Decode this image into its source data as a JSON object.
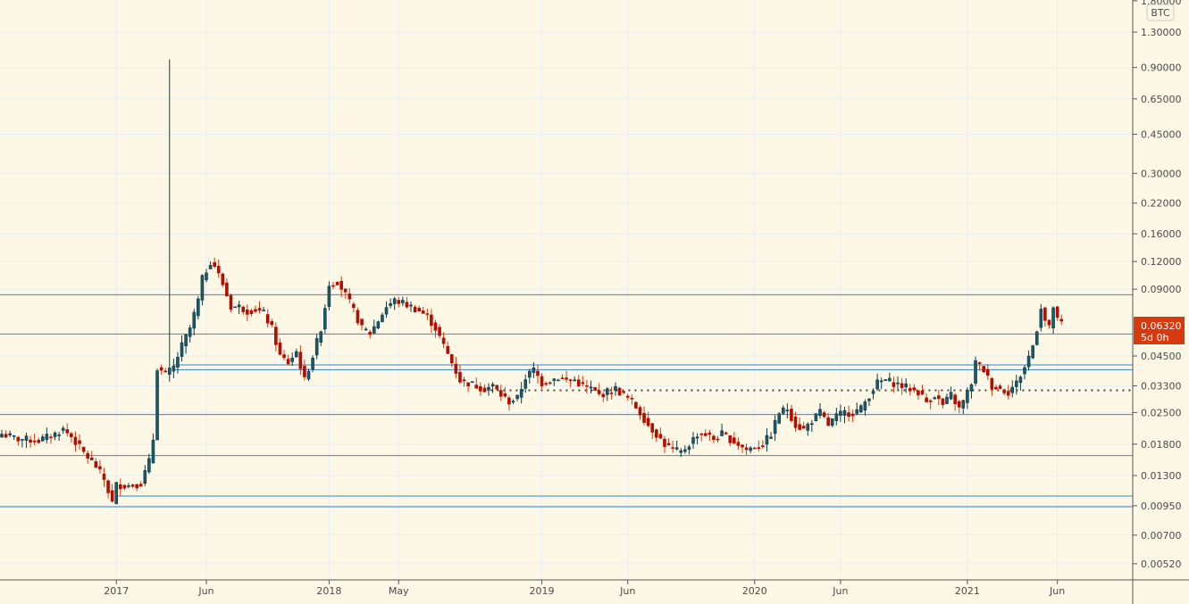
{
  "chart_data": {
    "type": "candlestick",
    "title": "",
    "scale": "log",
    "interval": "weekly",
    "currency_label": "BTC",
    "ylim": [
      0.0045,
      1.8
    ],
    "y_ticks": [
      "1.80000",
      "1.30000",
      "0.90000",
      "0.65000",
      "0.45000",
      "0.30000",
      "0.22000",
      "0.16000",
      "0.12000",
      "0.09000",
      "0.04500",
      "0.03300",
      "0.02500",
      "0.01800",
      "0.01300",
      "0.00950",
      "0.00700",
      "0.00520"
    ],
    "x_ticks": [
      {
        "label": "2017",
        "week": 28
      },
      {
        "label": "Jun",
        "week": 50
      },
      {
        "label": "2018",
        "week": 80
      },
      {
        "label": "May",
        "week": 97
      },
      {
        "label": "2019",
        "week": 132
      },
      {
        "label": "Jun",
        "week": 153
      },
      {
        "label": "2020",
        "week": 184
      },
      {
        "label": "Jun",
        "week": 205
      },
      {
        "label": "2021",
        "week": 236
      },
      {
        "label": "Jun",
        "week": 258
      }
    ],
    "weekly_close_anchors": [
      [
        0,
        0.02
      ],
      [
        4,
        0.019
      ],
      [
        9,
        0.0187
      ],
      [
        13,
        0.02
      ],
      [
        15,
        0.021
      ],
      [
        17,
        0.0195
      ],
      [
        20,
        0.0165
      ],
      [
        23,
        0.0143
      ],
      [
        25,
        0.0125
      ],
      [
        27,
        0.0098
      ],
      [
        28,
        0.0118
      ],
      [
        31,
        0.0117
      ],
      [
        34,
        0.012
      ],
      [
        36,
        0.015
      ],
      [
        37,
        0.019
      ],
      [
        38,
        0.04
      ],
      [
        40,
        0.037
      ],
      [
        42,
        0.04
      ],
      [
        44,
        0.05
      ],
      [
        46,
        0.06
      ],
      [
        48,
        0.08
      ],
      [
        49,
        0.1
      ],
      [
        51,
        0.12
      ],
      [
        52,
        0.115
      ],
      [
        54,
        0.095
      ],
      [
        56,
        0.075
      ],
      [
        58,
        0.075
      ],
      [
        60,
        0.072
      ],
      [
        62,
        0.073
      ],
      [
        64,
        0.07
      ],
      [
        66,
        0.06
      ],
      [
        68,
        0.045
      ],
      [
        70,
        0.042
      ],
      [
        72,
        0.047
      ],
      [
        74,
        0.035
      ],
      [
        76,
        0.045
      ],
      [
        78,
        0.06
      ],
      [
        79,
        0.075
      ],
      [
        80,
        0.095
      ],
      [
        82,
        0.098
      ],
      [
        84,
        0.085
      ],
      [
        86,
        0.072
      ],
      [
        88,
        0.06
      ],
      [
        90,
        0.057
      ],
      [
        92,
        0.065
      ],
      [
        94,
        0.075
      ],
      [
        96,
        0.08
      ],
      [
        98,
        0.078
      ],
      [
        100,
        0.075
      ],
      [
        102,
        0.072
      ],
      [
        104,
        0.068
      ],
      [
        106,
        0.06
      ],
      [
        108,
        0.05
      ],
      [
        110,
        0.042
      ],
      [
        112,
        0.035
      ],
      [
        114,
        0.034
      ],
      [
        116,
        0.033
      ],
      [
        118,
        0.032
      ],
      [
        120,
        0.033
      ],
      [
        122,
        0.03
      ],
      [
        124,
        0.028
      ],
      [
        126,
        0.029
      ],
      [
        128,
        0.036
      ],
      [
        130,
        0.039
      ],
      [
        132,
        0.034
      ],
      [
        134,
        0.035
      ],
      [
        136,
        0.036
      ],
      [
        138,
        0.035
      ],
      [
        140,
        0.035
      ],
      [
        142,
        0.033
      ],
      [
        144,
        0.032
      ],
      [
        146,
        0.03
      ],
      [
        148,
        0.031
      ],
      [
        150,
        0.032
      ],
      [
        152,
        0.03
      ],
      [
        154,
        0.028
      ],
      [
        156,
        0.025
      ],
      [
        158,
        0.022
      ],
      [
        160,
        0.02
      ],
      [
        162,
        0.018
      ],
      [
        164,
        0.017
      ],
      [
        166,
        0.0165
      ],
      [
        168,
        0.018
      ],
      [
        170,
        0.02
      ],
      [
        172,
        0.02
      ],
      [
        174,
        0.019
      ],
      [
        176,
        0.02
      ],
      [
        178,
        0.019
      ],
      [
        180,
        0.018
      ],
      [
        182,
        0.017
      ],
      [
        184,
        0.0175
      ],
      [
        186,
        0.018
      ],
      [
        188,
        0.02
      ],
      [
        190,
        0.025
      ],
      [
        192,
        0.026
      ],
      [
        194,
        0.022
      ],
      [
        196,
        0.021
      ],
      [
        198,
        0.023
      ],
      [
        200,
        0.025
      ],
      [
        202,
        0.022
      ],
      [
        204,
        0.024
      ],
      [
        206,
        0.025
      ],
      [
        208,
        0.025
      ],
      [
        210,
        0.026
      ],
      [
        212,
        0.03
      ],
      [
        214,
        0.034
      ],
      [
        216,
        0.035
      ],
      [
        218,
        0.034
      ],
      [
        220,
        0.033
      ],
      [
        222,
        0.032
      ],
      [
        224,
        0.031
      ],
      [
        226,
        0.028
      ],
      [
        228,
        0.03
      ],
      [
        230,
        0.027
      ],
      [
        232,
        0.03
      ],
      [
        234,
        0.026
      ],
      [
        235,
        0.028
      ],
      [
        237,
        0.034
      ],
      [
        238,
        0.042
      ],
      [
        240,
        0.039
      ],
      [
        242,
        0.033
      ],
      [
        244,
        0.032
      ],
      [
        246,
        0.031
      ],
      [
        248,
        0.034
      ],
      [
        250,
        0.04
      ],
      [
        252,
        0.05
      ],
      [
        253,
        0.06
      ],
      [
        254,
        0.075
      ],
      [
        255,
        0.065
      ],
      [
        256,
        0.06
      ],
      [
        257,
        0.075
      ],
      [
        258,
        0.065
      ],
      [
        259,
        0.0632
      ]
    ],
    "spike": {
      "week": 41,
      "high": 0.98
    },
    "horizontal_levels": [
      {
        "price": 0.085,
        "style": "gray"
      },
      {
        "price": 0.0565,
        "style": "gray"
      },
      {
        "price": 0.041,
        "style": "blue",
        "from_week": 42
      },
      {
        "price": 0.039,
        "style": "blue",
        "from_week": 42
      },
      {
        "price": 0.0315,
        "style": "dotted",
        "from_week": 118
      },
      {
        "price": 0.0245,
        "style": "gray"
      },
      {
        "price": 0.016,
        "style": "gray"
      },
      {
        "price": 0.0105,
        "style": "blue",
        "from_week": 28
      },
      {
        "price": 0.0094,
        "style": "blue"
      }
    ],
    "last_price": {
      "value": "0.06320",
      "countdown": "5d 0h"
    },
    "colors": {
      "up": "#1d5868",
      "up_border": "#0b3a46",
      "down": "#b30d00",
      "down_wick": "#d83a10",
      "bg": "#fdf8e6",
      "grid": "#e6eef2",
      "level_gray": "#7a7a7a",
      "level_blue": "#2f86d6",
      "price_label": "#d83a10"
    }
  }
}
